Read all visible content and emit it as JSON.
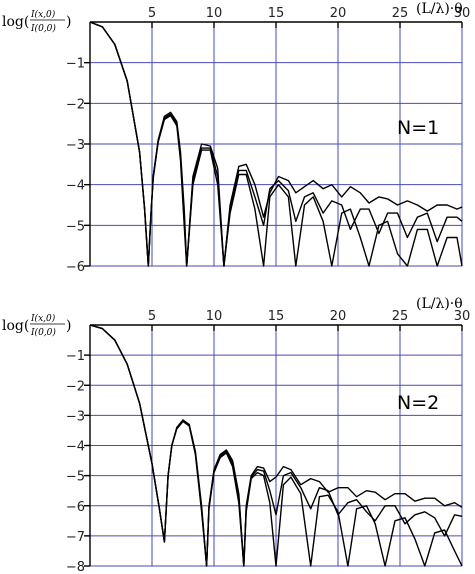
{
  "chart_data": [
    {
      "type": "line",
      "ylabel": "log(I(x,0)/I(0,0))",
      "ylabel_text": {
        "prefix": "log(",
        "num": "I(x,0)",
        "den": "I(0,0)",
        "suffix": ")"
      },
      "xlabel": "(L/λ)·θ",
      "xlim": [
        0,
        30
      ],
      "ylim": [
        -6,
        0
      ],
      "x_ticks": [
        "5",
        "10",
        "15",
        "20",
        "25",
        "30"
      ],
      "y_ticks": [
        "-1",
        "-2",
        "-3",
        "-4",
        "-5",
        "-6"
      ],
      "annotation": "N=1",
      "series": [
        {
          "x": [
            0,
            1,
            2,
            3,
            4,
            4.4,
            4.7,
            4.9,
            5.1,
            5.5,
            6,
            6.5,
            7,
            7.3,
            7.6,
            7.8,
            8.3,
            9,
            9.7,
            10.3,
            10.8,
            11.3,
            12,
            12.6,
            13.3,
            14,
            14.5,
            15.2,
            16,
            16.6,
            17.3,
            18,
            18.8,
            19.5,
            20.3,
            21,
            21.8,
            22.5,
            23.3,
            24,
            24.8,
            25.6,
            26.4,
            27.2,
            28,
            28.8,
            29.6,
            30
          ],
          "values": [
            0,
            -0.12,
            -0.55,
            -1.45,
            -3.2,
            -4.6,
            -6,
            -4.8,
            -3.8,
            -2.9,
            -2.32,
            -2.22,
            -2.45,
            -3.2,
            -4.6,
            -6,
            -3.8,
            -3,
            -3.05,
            -3.6,
            -6,
            -4.5,
            -3.55,
            -3.5,
            -4,
            -4.8,
            -4.2,
            -3.8,
            -3.9,
            -4.2,
            -4.05,
            -3.9,
            -4.1,
            -4,
            -4.3,
            -4.05,
            -4.2,
            -4.45,
            -4.3,
            -4.35,
            -4.5,
            -4.4,
            -4.5,
            -4.65,
            -4.5,
            -4.5,
            -4.6,
            -4.55
          ]
        },
        {
          "x": [
            0,
            1,
            2,
            3,
            4,
            4.4,
            4.7,
            4.9,
            5.1,
            5.5,
            6,
            6.5,
            7,
            7.3,
            7.6,
            7.8,
            8.3,
            9,
            9.7,
            10.3,
            10.8,
            11.3,
            12,
            12.6,
            13.3,
            14,
            14.5,
            15.2,
            16,
            16.6,
            17.3,
            18,
            18.8,
            19.5,
            20.3,
            21,
            21.8,
            22.5,
            23.3,
            24,
            24.8,
            25.6,
            26.4,
            27.2,
            28,
            28.8,
            29.6,
            30
          ],
          "values": [
            0,
            -0.12,
            -0.55,
            -1.45,
            -3.2,
            -4.6,
            -6,
            -4.8,
            -3.8,
            -2.92,
            -2.36,
            -2.26,
            -2.5,
            -3.3,
            -4.8,
            -6,
            -3.9,
            -3.1,
            -3.1,
            -3.8,
            -6,
            -4.6,
            -3.65,
            -3.65,
            -4.3,
            -5,
            -4.1,
            -3.9,
            -4.15,
            -4.9,
            -4.3,
            -4.2,
            -4.7,
            -4.4,
            -4.5,
            -5.1,
            -4.6,
            -4.6,
            -5.2,
            -4.7,
            -4.7,
            -5.3,
            -4.8,
            -4.7,
            -5.4,
            -4.8,
            -4.8,
            -4.9
          ]
        },
        {
          "x": [
            0,
            1,
            2,
            3,
            4,
            4.4,
            4.7,
            4.9,
            5.1,
            5.5,
            6,
            6.5,
            7,
            7.3,
            7.6,
            7.8,
            8.3,
            9,
            9.7,
            10.3,
            10.8,
            11.3,
            12,
            12.6,
            13.3,
            14,
            14.5,
            15.2,
            16,
            16.6,
            17.3,
            18,
            18.8,
            19.5,
            20.3,
            21,
            21.8,
            22.5,
            23.3,
            24,
            24.8,
            25.6,
            26.4,
            27.2,
            28,
            28.8,
            29.6,
            30
          ],
          "values": [
            0,
            -0.12,
            -0.55,
            -1.45,
            -3.2,
            -4.6,
            -6,
            -4.8,
            -3.85,
            -2.95,
            -2.4,
            -2.3,
            -2.55,
            -3.4,
            -5,
            -6,
            -4,
            -3.15,
            -3.15,
            -4,
            -6,
            -4.7,
            -3.75,
            -3.75,
            -4.6,
            -6,
            -4.3,
            -4,
            -4.3,
            -6,
            -4.5,
            -4.3,
            -4.9,
            -6,
            -4.7,
            -4.6,
            -5.3,
            -6,
            -5,
            -4.9,
            -5.7,
            -6,
            -5.1,
            -5.1,
            -6,
            -5.3,
            -5.3,
            -6
          ]
        }
      ]
    },
    {
      "type": "line",
      "ylabel": "log(I(x,0)/I(0,0))",
      "ylabel_text": {
        "prefix": "log(",
        "num": "I(x,0)",
        "den": "I(0,0)",
        "suffix": ")"
      },
      "xlabel": "(L/λ)·θ",
      "xlim": [
        0,
        30
      ],
      "ylim": [
        -8,
        0
      ],
      "x_ticks": [
        "5",
        "10",
        "15",
        "20",
        "25",
        "30"
      ],
      "y_ticks": [
        "-1",
        "-2",
        "-3",
        "-4",
        "-5",
        "-6",
        "-7",
        "-8"
      ],
      "annotation": "N=2",
      "series": [
        {
          "x": [
            0,
            1,
            2,
            3,
            4,
            5,
            5.6,
            6,
            6.3,
            6.6,
            7,
            7.5,
            8,
            8.5,
            9,
            9.4,
            9.6,
            10,
            10.5,
            11,
            11.5,
            12,
            12.4,
            12.6,
            13,
            13.5,
            14,
            14.5,
            15,
            15.6,
            16.2,
            17,
            17.8,
            18.5,
            19.2,
            20,
            20.8,
            21.5,
            22.3,
            23,
            23.8,
            24.6,
            25.4,
            26.2,
            27,
            27.8,
            28.6,
            29.4,
            30
          ],
          "values": [
            0,
            -0.12,
            -0.5,
            -1.3,
            -2.6,
            -4.6,
            -6.1,
            -7.2,
            -5,
            -4,
            -3.4,
            -3.15,
            -3.3,
            -4.2,
            -6,
            -8,
            -6,
            -4.8,
            -4.3,
            -4.15,
            -4.5,
            -5.6,
            -8,
            -6,
            -5,
            -4.7,
            -4.75,
            -5.2,
            -5.05,
            -4.7,
            -4.8,
            -5.3,
            -5.1,
            -5.2,
            -5.55,
            -5.4,
            -5.4,
            -5.7,
            -5.5,
            -5.55,
            -5.8,
            -5.6,
            -5.6,
            -5.85,
            -5.75,
            -5.75,
            -6,
            -5.9,
            -6.05
          ]
        },
        {
          "x": [
            0,
            1,
            2,
            3,
            4,
            5,
            5.6,
            6,
            6.3,
            6.6,
            7,
            7.5,
            8,
            8.5,
            9,
            9.4,
            9.6,
            10,
            10.5,
            11,
            11.5,
            12,
            12.4,
            12.6,
            13,
            13.5,
            14,
            14.5,
            15,
            15.6,
            16.2,
            17,
            17.8,
            18.5,
            19.2,
            20,
            20.8,
            21.5,
            22.3,
            23,
            23.8,
            24.6,
            25.4,
            26.2,
            27,
            27.8,
            28.6,
            29.4,
            30
          ],
          "values": [
            0,
            -0.12,
            -0.5,
            -1.3,
            -2.6,
            -4.6,
            -6.1,
            -7.2,
            -5,
            -4,
            -3.42,
            -3.17,
            -3.32,
            -4.25,
            -6.1,
            -8,
            -6,
            -4.85,
            -4.35,
            -4.2,
            -4.6,
            -5.7,
            -8,
            -6.1,
            -5.05,
            -4.8,
            -4.85,
            -5.5,
            -6.3,
            -5,
            -4.9,
            -5.4,
            -6.1,
            -5.4,
            -5.5,
            -6.3,
            -5.9,
            -5.8,
            -6.2,
            -6.5,
            -6,
            -6,
            -6.6,
            -6.3,
            -6.2,
            -6.4,
            -7,
            -6.3,
            -6.35
          ]
        },
        {
          "x": [
            0,
            1,
            2,
            3,
            4,
            5,
            5.6,
            6,
            6.3,
            6.6,
            7,
            7.5,
            8,
            8.5,
            9,
            9.4,
            9.6,
            10,
            10.5,
            11,
            11.5,
            12,
            12.4,
            12.6,
            13,
            13.5,
            14,
            14.5,
            15,
            15.6,
            16.2,
            17,
            17.8,
            18.5,
            19.2,
            20,
            20.8,
            21.5,
            22.3,
            23,
            23.8,
            24.6,
            25.4,
            26.2,
            27,
            27.8,
            28.6,
            29.4,
            30
          ],
          "values": [
            0,
            -0.12,
            -0.5,
            -1.3,
            -2.6,
            -4.6,
            -6.1,
            -7.2,
            -5,
            -4,
            -3.45,
            -3.2,
            -3.35,
            -4.3,
            -6.2,
            -8,
            -6.1,
            -4.9,
            -4.4,
            -4.25,
            -4.7,
            -5.9,
            -8,
            -6.2,
            -5.1,
            -4.9,
            -5,
            -5.9,
            -8,
            -5.3,
            -5.05,
            -5.6,
            -8,
            -5.7,
            -5.65,
            -6.2,
            -8,
            -6.1,
            -6,
            -6.6,
            -8,
            -6.5,
            -6.4,
            -7.1,
            -8,
            -6.9,
            -6.8,
            -7.5,
            -8
          ]
        }
      ]
    }
  ]
}
